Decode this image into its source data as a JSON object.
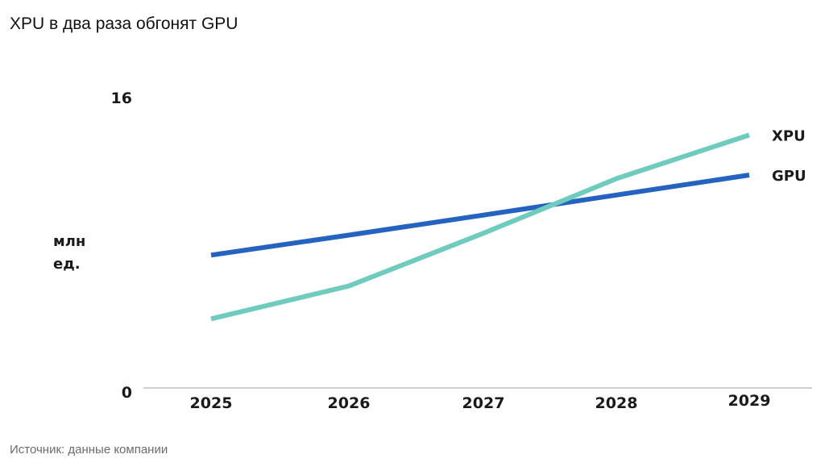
{
  "title": "XPU в два раза обгонят GPU",
  "source": "Источник: данные компании",
  "chart_data": {
    "type": "line",
    "title": "XPU в два раза обгонят GPU",
    "xlabel": "",
    "ylabel": [
      "млн",
      "ед."
    ],
    "x": [
      "2025",
      "2026",
      "2027",
      "2028",
      "2029"
    ],
    "ylim": [
      0,
      16
    ],
    "yticks": [
      "0",
      "16"
    ],
    "grid": false,
    "legend": "right-end labels",
    "series": [
      {
        "name": "XPU",
        "color": "#6fcbbd",
        "values": [
          3.8,
          5.6,
          8.5,
          11.5,
          13.9
        ]
      },
      {
        "name": "GPU",
        "color": "#2563c0",
        "values": [
          7.3,
          8.4,
          9.5,
          10.6,
          11.7
        ]
      }
    ]
  }
}
